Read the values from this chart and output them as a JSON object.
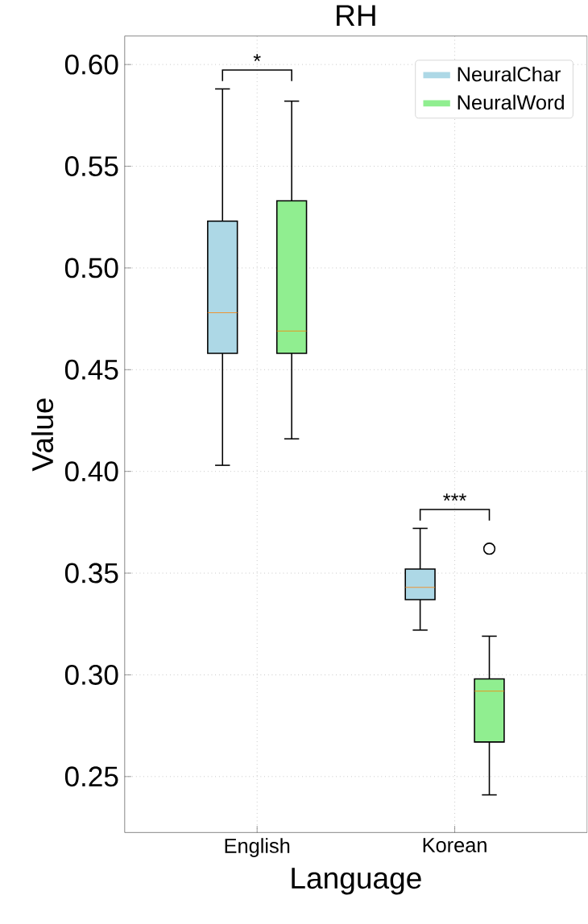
{
  "chart_data": {
    "type": "box",
    "title": "RH",
    "xlabel": "Language",
    "ylabel": "Value",
    "categories": [
      "English",
      "Korean"
    ],
    "series": [
      {
        "name": "NeuralChar",
        "color": "#add8e6",
        "boxes": [
          {
            "low": 0.403,
            "q1": 0.458,
            "median": 0.478,
            "q3": 0.523,
            "high": 0.588
          },
          {
            "low": 0.322,
            "q1": 0.337,
            "median": 0.343,
            "q3": 0.352,
            "high": 0.372
          }
        ]
      },
      {
        "name": "NeuralWord",
        "color": "#90ee90",
        "boxes": [
          {
            "low": 0.416,
            "q1": 0.458,
            "median": 0.469,
            "q3": 0.533,
            "high": 0.582
          },
          {
            "low": 0.241,
            "q1": 0.267,
            "median": 0.292,
            "q3": 0.298,
            "high": 0.319,
            "outliers": [
              0.362
            ]
          }
        ]
      }
    ],
    "ylim": [
      0.2225,
      0.614
    ],
    "yticks": [
      {
        "value": 0.25,
        "label": "0.25"
      },
      {
        "value": 0.3,
        "label": "0.30"
      },
      {
        "value": 0.35,
        "label": "0.35"
      },
      {
        "value": 0.4,
        "label": "0.40"
      },
      {
        "value": 0.45,
        "label": "0.45"
      },
      {
        "value": 0.5,
        "label": "0.50"
      },
      {
        "value": 0.55,
        "label": "0.55"
      },
      {
        "value": 0.6,
        "label": "0.60"
      }
    ],
    "grid": true,
    "legend": "top right",
    "annotations": [
      "*",
      "***"
    ]
  }
}
